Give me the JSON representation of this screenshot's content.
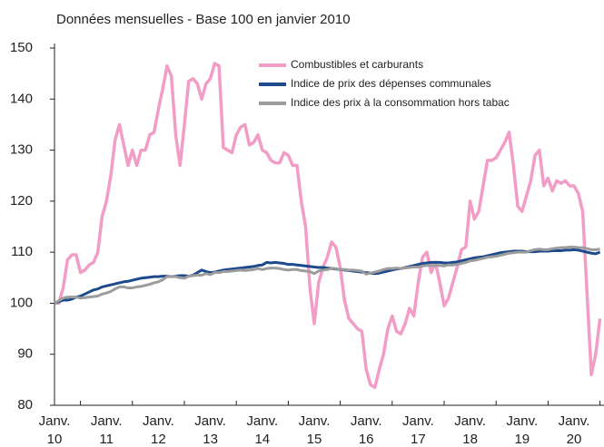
{
  "chart_data": {
    "type": "line",
    "title": "Données mensuelles - Base 100 en janvier 2010",
    "categories": [
      "Janv. 10",
      null,
      null,
      null,
      null,
      null,
      null,
      null,
      null,
      null,
      null,
      null,
      "Janv. 11",
      null,
      null,
      null,
      null,
      null,
      null,
      null,
      null,
      null,
      null,
      null,
      "Janv. 12",
      null,
      null,
      null,
      null,
      null,
      null,
      null,
      null,
      null,
      null,
      null,
      "Janv. 13",
      null,
      null,
      null,
      null,
      null,
      null,
      null,
      null,
      null,
      null,
      null,
      "Janv. 14",
      null,
      null,
      null,
      null,
      null,
      null,
      null,
      null,
      null,
      null,
      null,
      "Janv. 15",
      null,
      null,
      null,
      null,
      null,
      null,
      null,
      null,
      null,
      null,
      null,
      "Janv. 16",
      null,
      null,
      null,
      null,
      null,
      null,
      null,
      null,
      null,
      null,
      null,
      "Janv. 17",
      null,
      null,
      null,
      null,
      null,
      null,
      null,
      null,
      null,
      null,
      null,
      "Janv. 18",
      null,
      null,
      null,
      null,
      null,
      null,
      null,
      null,
      null,
      null,
      null,
      "Janv. 19",
      null,
      null,
      null,
      null,
      null,
      null,
      null,
      null,
      null,
      null,
      null,
      "Janv. 20",
      null,
      null,
      null,
      null,
      null,
      null
    ],
    "series": [
      {
        "name": "Combustibles et carburants",
        "color": "#f29dc6",
        "values": [
          100,
          100,
          103,
          108.5,
          109.5,
          109.5,
          106,
          106.5,
          107.5,
          108,
          110,
          117,
          120,
          125,
          132,
          135,
          131,
          127,
          130,
          127,
          130,
          130,
          133,
          133.5,
          138,
          142,
          146.5,
          144.5,
          133,
          127,
          135,
          143.5,
          144,
          143,
          140,
          143,
          144,
          147,
          146.5,
          130.5,
          130,
          129.5,
          133,
          134.5,
          135,
          131,
          131.5,
          133,
          130,
          129.5,
          128,
          127.5,
          127.5,
          129.5,
          129,
          127,
          127,
          120,
          115,
          103,
          96,
          104,
          107,
          109,
          112,
          111,
          107,
          100.5,
          97,
          96,
          95,
          94.5,
          87,
          84,
          83.5,
          87,
          90,
          95,
          97.5,
          94.5,
          94,
          96,
          99,
          97.5,
          104,
          109,
          110,
          106,
          108,
          104,
          99.5,
          101,
          104,
          107,
          110.5,
          111,
          120,
          116.5,
          118,
          123,
          128,
          128,
          128.5,
          130,
          131.5,
          133.5,
          127,
          119,
          118,
          121,
          124,
          129,
          130,
          123,
          124.5,
          122,
          124,
          123.5,
          124,
          123,
          123,
          121.5,
          118,
          102,
          86,
          90,
          97
        ]
      },
      {
        "name": "Indice de prix des dépenses communales",
        "color": "#1d4a8c",
        "values": [
          100,
          100.3,
          100.6,
          100.6,
          100.8,
          101.2,
          101.4,
          101.8,
          102.2,
          102.6,
          102.8,
          103.2,
          103.4,
          103.6,
          103.8,
          104,
          104.2,
          104.3,
          104.5,
          104.7,
          104.9,
          105,
          105.1,
          105.2,
          105.2,
          105.3,
          105.3,
          105.2,
          105.3,
          105.4,
          105.4,
          105.3,
          105.5,
          106,
          106.5,
          106.2,
          106,
          106.1,
          106.3,
          106.5,
          106.6,
          106.7,
          106.8,
          106.9,
          107,
          107.1,
          107.2,
          107.4,
          107.5,
          108,
          107.9,
          108,
          107.9,
          107.8,
          107.6,
          107.6,
          107.5,
          107.4,
          107.3,
          107.2,
          107.1,
          107,
          107,
          106.9,
          106.8,
          106.7,
          106.6,
          106.5,
          106.4,
          106.3,
          106.2,
          106.1,
          106,
          105.9,
          105.8,
          105.9,
          106.1,
          106.3,
          106.5,
          106.7,
          106.8,
          107,
          107.2,
          107.4,
          107.6,
          107.8,
          107.9,
          108,
          108,
          108,
          107.9,
          107.9,
          108,
          108.1,
          108.3,
          108.5,
          108.7,
          108.9,
          109,
          109.1,
          109.3,
          109.5,
          109.7,
          109.9,
          110,
          110.1,
          110.2,
          110.2,
          110.2,
          110.1,
          110.1,
          110.1,
          110.2,
          110.2,
          110.2,
          110.3,
          110.3,
          110.3,
          110.4,
          110.4,
          110.5,
          110.4,
          110.2,
          110,
          109.8,
          109.7,
          110
        ]
      },
      {
        "name": "Indice des prix à la consommation hors tabac",
        "color": "#9c9c9c",
        "values": [
          100,
          100.5,
          101,
          101.2,
          101.2,
          101.2,
          101,
          101.1,
          101.2,
          101.3,
          101.4,
          101.8,
          102,
          102.3,
          102.8,
          103.2,
          103.2,
          103,
          103,
          103.2,
          103.3,
          103.5,
          103.7,
          104,
          104.2,
          104.6,
          105.2,
          105.2,
          105.2,
          105,
          104.9,
          105.3,
          105.4,
          105.5,
          105.5,
          105.8,
          105.6,
          106,
          106,
          106.2,
          106.2,
          106.3,
          106.4,
          106.5,
          106.4,
          106.5,
          106.6,
          106.8,
          106.6,
          106.8,
          106.9,
          106.9,
          106.8,
          106.6,
          106.5,
          106.6,
          106.6,
          106.4,
          106.3,
          106.2,
          105.8,
          106.3,
          106.5,
          106.6,
          106.8,
          106.8,
          106.6,
          106.6,
          106.5,
          106.5,
          106.4,
          106.3,
          105.7,
          105.9,
          106.1,
          106.3,
          106.6,
          106.8,
          106.8,
          106.9,
          106.8,
          106.9,
          107,
          107.1,
          107.1,
          107.3,
          107.4,
          107.4,
          107.4,
          107.4,
          107.3,
          107.5,
          107.5,
          107.6,
          107.8,
          108,
          108.3,
          108.4,
          108.6,
          108.8,
          109,
          109.1,
          109.2,
          109.4,
          109.6,
          109.8,
          109.9,
          110,
          110,
          110,
          110.3,
          110.5,
          110.6,
          110.5,
          110.5,
          110.7,
          110.8,
          110.9,
          110.9,
          111,
          111,
          110.9,
          110.9,
          110.7,
          110.5,
          110.5,
          110.6
        ]
      }
    ],
    "ylim": [
      80,
      150
    ],
    "yticks": [
      80,
      90,
      100,
      110,
      120,
      130,
      140,
      150
    ],
    "grid": false,
    "legend": "top"
  }
}
